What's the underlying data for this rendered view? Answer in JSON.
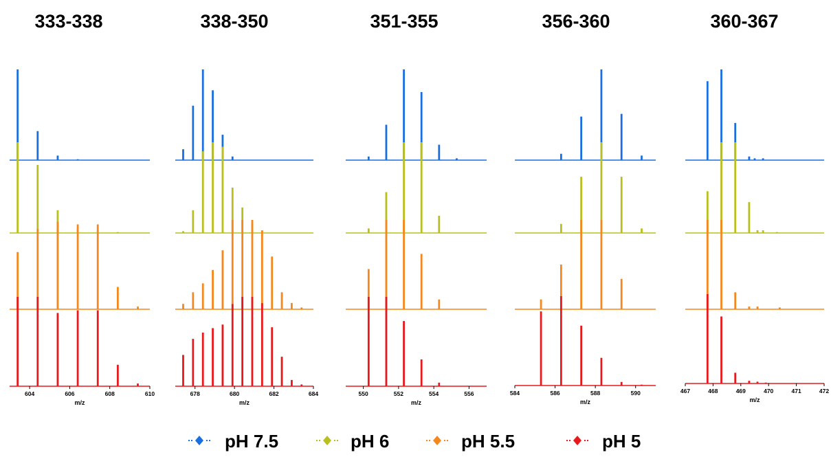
{
  "chart_data": {
    "type": "bar",
    "legend": {
      "placement": "bottom",
      "entries": [
        {
          "label": "pH 7.5",
          "color": "#1a6fe0"
        },
        {
          "label": "pH 6",
          "color": "#b9bf1f"
        },
        {
          "label": "pH 5.5",
          "color": "#f5871f"
        },
        {
          "label": "pH 5",
          "color": "#e8191c"
        }
      ]
    },
    "panels": [
      {
        "title": "333-338",
        "xlabel": "m/z",
        "xlim": [
          603,
          610
        ],
        "xticks": [
          604,
          606,
          608,
          610
        ],
        "series": [
          {
            "name": "pH 7.5",
            "x": [
              603.4,
              604.4,
              605.4,
              606.4
            ],
            "y": [
              100,
              32,
              5,
              1
            ]
          },
          {
            "name": "pH 6",
            "x": [
              603.4,
              604.4,
              605.4,
              606.4,
              607.4,
              608.4
            ],
            "y": [
              100,
              75,
              25,
              5,
              2,
              1
            ]
          },
          {
            "name": "pH 5.5",
            "x": [
              603.4,
              604.4,
              605.4,
              606.4,
              607.4,
              608.4,
              609.4
            ],
            "y": [
              64,
              90,
              98,
              95,
              95,
              25,
              3
            ]
          },
          {
            "name": "pH 5",
            "x": [
              603.4,
              604.4,
              605.4,
              606.4,
              607.4,
              608.4,
              609.4
            ],
            "y": [
              100,
              100,
              82,
              85,
              85,
              24,
              3
            ]
          }
        ]
      },
      {
        "title": "338-350",
        "xlabel": "m/z",
        "xlim": [
          677,
          684
        ],
        "xticks": [
          678,
          680,
          682,
          684
        ],
        "series": [
          {
            "name": "pH 7.5",
            "x": [
              677.4,
              677.9,
              678.4,
              678.9,
              679.4,
              679.9
            ],
            "y": [
              12,
              60,
              100,
              77,
              28,
              4
            ]
          },
          {
            "name": "pH 6",
            "x": [
              677.4,
              677.9,
              678.4,
              678.9,
              679.4,
              679.9,
              680.4,
              680.9,
              681.4
            ],
            "y": [
              2,
              25,
              90,
              100,
              95,
              50,
              28,
              10,
              3
            ]
          },
          {
            "name": "pH 5.5",
            "x": [
              677.4,
              677.9,
              678.4,
              678.9,
              679.4,
              679.9,
              680.4,
              680.9,
              681.4,
              681.9,
              682.4,
              682.9,
              683.4
            ],
            "y": [
              6,
              19,
              29,
              44,
              66,
              100,
              100,
              100,
              88,
              59,
              19,
              7,
              2
            ]
          },
          {
            "name": "pH 5",
            "x": [
              677.4,
              677.9,
              678.4,
              678.9,
              679.4,
              679.9,
              680.4,
              680.9,
              681.4,
              681.9,
              682.4,
              682.9,
              683.4
            ],
            "y": [
              35,
              53,
              60,
              65,
              69,
              92,
              100,
              100,
              93,
              66,
              33,
              7,
              2
            ]
          }
        ]
      },
      {
        "title": "351-355",
        "xlabel": "m/z",
        "xlim": [
          549,
          557
        ],
        "xticks": [
          550,
          552,
          554,
          556
        ],
        "series": [
          {
            "name": "pH 7.5",
            "x": [
              550.3,
              551.3,
              552.3,
              553.3,
              554.3,
              555.3
            ],
            "y": [
              4,
              39,
              100,
              75,
              17,
              2
            ]
          },
          {
            "name": "pH 6",
            "x": [
              550.3,
              551.3,
              552.3,
              553.3,
              554.3
            ],
            "y": [
              5,
              45,
              100,
              100,
              19
            ]
          },
          {
            "name": "pH 5.5",
            "x": [
              550.3,
              551.3,
              552.3,
              553.3,
              554.3
            ],
            "y": [
              45,
              100,
              100,
              62,
              11
            ]
          },
          {
            "name": "pH 5",
            "x": [
              550.3,
              551.3,
              552.3,
              553.3,
              554.3
            ],
            "y": [
              100,
              100,
              73,
              30,
              4
            ]
          }
        ]
      },
      {
        "title": "356-360",
        "xlabel": "m/z",
        "xlim": [
          584,
          591
        ],
        "xticks": [
          584,
          586,
          588,
          590
        ],
        "series": [
          {
            "name": "pH 7.5",
            "x": [
              586.3,
              587.3,
              588.3,
              589.3,
              590.3
            ],
            "y": [
              7,
              48,
              100,
              51,
              5
            ]
          },
          {
            "name": "pH 6",
            "x": [
              586.3,
              587.3,
              588.3,
              589.3,
              590.3
            ],
            "y": [
              10,
              62,
              100,
              62,
              5
            ]
          },
          {
            "name": "pH 5.5",
            "x": [
              585.3,
              586.3,
              587.3,
              588.3,
              589.3
            ],
            "y": [
              11,
              50,
              100,
              100,
              34
            ]
          },
          {
            "name": "pH 5",
            "x": [
              585.3,
              586.3,
              587.3,
              588.3,
              589.3,
              590.3
            ],
            "y": [
              83,
              100,
              67,
              31,
              4,
              1
            ]
          }
        ]
      },
      {
        "title": "360-367",
        "xlabel": "m/z",
        "xlim": [
          467,
          472
        ],
        "xticks": [
          467,
          468,
          469,
          470,
          471,
          472
        ],
        "series": [
          {
            "name": "pH 7.5",
            "x": [
              467.8,
              468.3,
              468.8,
              469.3,
              469.5,
              469.8
            ],
            "y": [
              87,
              100,
              41,
              4,
              2,
              2
            ]
          },
          {
            "name": "pH 6",
            "x": [
              467.8,
              468.3,
              468.8,
              469.3,
              469.6,
              469.8,
              470.3
            ],
            "y": [
              46,
              100,
              100,
              34,
              3,
              3,
              1
            ]
          },
          {
            "name": "pH 5.5",
            "x": [
              467.8,
              468.3,
              468.8,
              469.3,
              469.6,
              470.4
            ],
            "y": [
              100,
              100,
              19,
              3,
              3,
              2
            ]
          },
          {
            "name": "pH 5",
            "x": [
              467.8,
              468.3,
              468.8,
              469.3,
              469.6,
              469.9
            ],
            "y": [
              100,
              75,
              12,
              3,
              2,
              1
            ]
          }
        ]
      }
    ]
  }
}
